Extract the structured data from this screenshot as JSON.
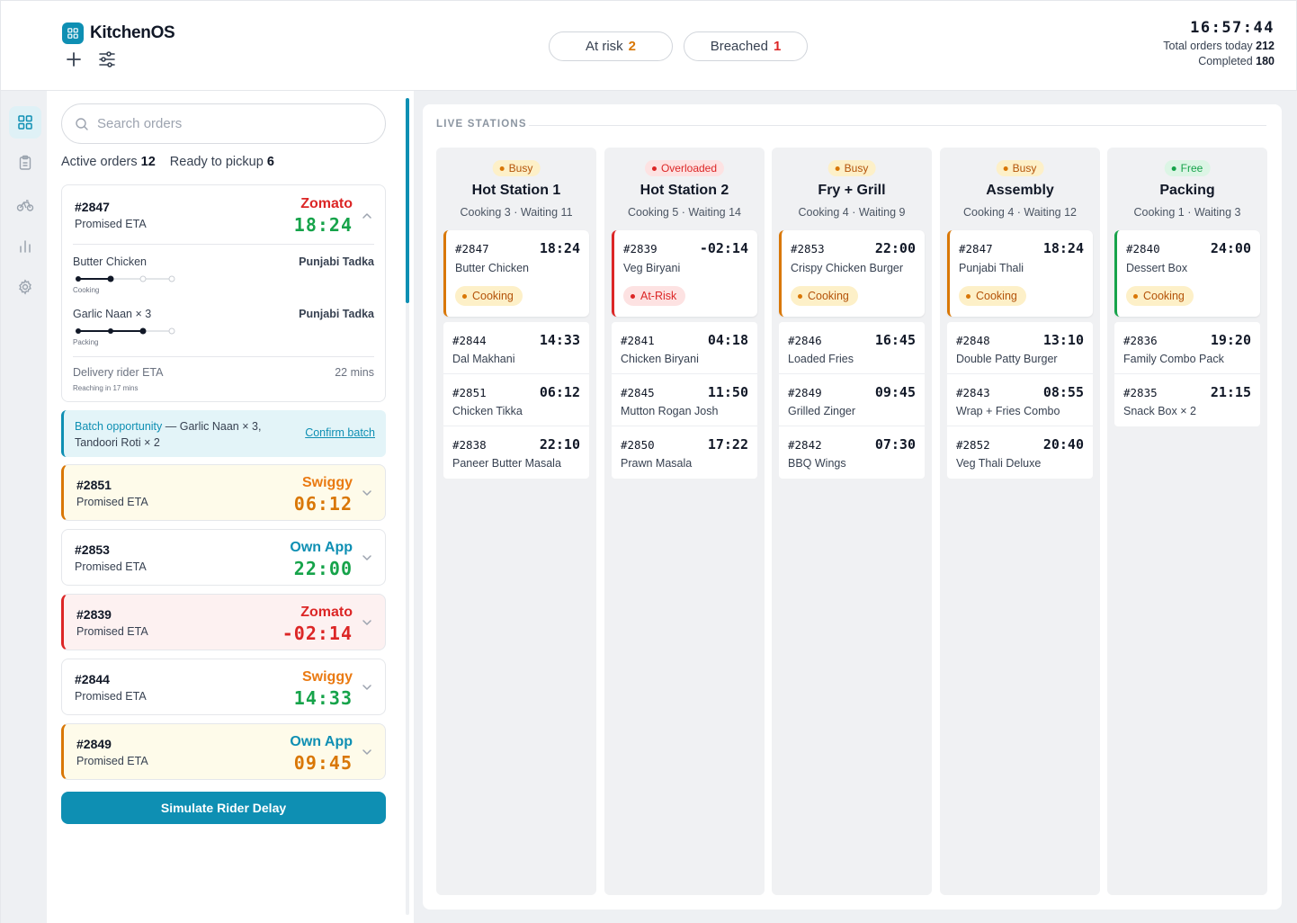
{
  "app": {
    "name": "KitchenOS"
  },
  "header": {
    "at_risk_label": "At risk",
    "at_risk_count": "2",
    "breached_label": "Breached",
    "breached_count": "1",
    "clock": "16:57:44",
    "total_label": "Total orders today",
    "total_value": "212",
    "completed_label": "Completed",
    "completed_value": "180",
    "icons": [
      "plus-icon",
      "sliders-icon"
    ]
  },
  "sidebar": {
    "items": [
      {
        "name": "dashboard",
        "icon": "grid-icon",
        "active": true
      },
      {
        "name": "orders",
        "icon": "clipboard-icon"
      },
      {
        "name": "riders",
        "icon": "bike-icon"
      },
      {
        "name": "analytics",
        "icon": "bar-chart-icon"
      },
      {
        "name": "settings",
        "icon": "gear-icon"
      }
    ]
  },
  "left": {
    "search_placeholder": "Search orders",
    "active_label": "Active orders",
    "active_count": "12",
    "ready_label": "Ready to pickup",
    "ready_count": "6",
    "expanded": {
      "id": "#2847",
      "promised": "Promised ETA",
      "vendor": "Zomato",
      "eta": "18:24",
      "items": [
        {
          "name": "Butter Chicken",
          "station": "Punjabi Tadka",
          "stage": "Cooking",
          "progress": 0.33
        },
        {
          "name": "Garlic Naan × 3",
          "station": "Punjabi Tadka",
          "stage": "Packing",
          "progress": 0.67
        }
      ],
      "rider_label": "Delivery rider ETA",
      "rider_value": "22 mins",
      "rider_sub": "Reaching in 17 mins"
    },
    "batch": {
      "title": "Batch opportunity",
      "text": " — Garlic Naan × 3, Tandoori Roti × 2",
      "action": "Confirm batch"
    },
    "orders": [
      {
        "id": "#2851",
        "promised": "Promised ETA",
        "vendor": "Swiggy",
        "eta": "06:12"
      },
      {
        "id": "#2853",
        "promised": "Promised ETA",
        "vendor": "Own App",
        "eta": "22:00"
      },
      {
        "id": "#2839",
        "promised": "Promised ETA",
        "vendor": "Zomato",
        "eta": "-02:14"
      },
      {
        "id": "#2844",
        "promised": "Promised ETA",
        "vendor": "Swiggy",
        "eta": "14:33"
      },
      {
        "id": "#2849",
        "promised": "Promised ETA",
        "vendor": "Own App",
        "eta": "09:45"
      }
    ],
    "simulate_button": "Simulate Rider Delay"
  },
  "main": {
    "section_label": "LIVE STATIONS",
    "stations": [
      {
        "status": "Busy",
        "name": "Hot Station 1",
        "summary": "Cooking 3 · Waiting 11",
        "head": {
          "id": "#2847",
          "time": "18:24",
          "item": "Butter Chicken",
          "tag": "Cooking"
        },
        "queue": [
          {
            "id": "#2844",
            "time": "14:33",
            "item": "Dal Makhani"
          },
          {
            "id": "#2851",
            "time": "06:12",
            "item": "Chicken Tikka"
          },
          {
            "id": "#2838",
            "time": "22:10",
            "item": "Paneer Butter Masala"
          }
        ]
      },
      {
        "status": "Overloaded",
        "name": "Hot Station 2",
        "summary": "Cooking 5 · Waiting 14",
        "head": {
          "id": "#2839",
          "time": "-02:14",
          "item": "Veg Biryani",
          "tag": "At-Risk"
        },
        "queue": [
          {
            "id": "#2841",
            "time": "04:18",
            "item": "Chicken Biryani"
          },
          {
            "id": "#2845",
            "time": "11:50",
            "item": "Mutton Rogan Josh"
          },
          {
            "id": "#2850",
            "time": "17:22",
            "item": "Prawn Masala"
          }
        ]
      },
      {
        "status": "Busy",
        "name": "Fry + Grill",
        "summary": "Cooking 4 · Waiting 9",
        "head": {
          "id": "#2853",
          "time": "22:00",
          "item": "Crispy Chicken Burger",
          "tag": "Cooking"
        },
        "queue": [
          {
            "id": "#2846",
            "time": "16:45",
            "item": "Loaded Fries"
          },
          {
            "id": "#2849",
            "time": "09:45",
            "item": "Grilled Zinger"
          },
          {
            "id": "#2842",
            "time": "07:30",
            "item": "BBQ Wings"
          }
        ]
      },
      {
        "status": "Busy",
        "name": "Assembly",
        "summary": "Cooking 4 · Waiting 12",
        "head": {
          "id": "#2847",
          "time": "18:24",
          "item": "Punjabi Thali",
          "tag": "Cooking"
        },
        "queue": [
          {
            "id": "#2848",
            "time": "13:10",
            "item": "Double Patty Burger"
          },
          {
            "id": "#2843",
            "time": "08:55",
            "item": "Wrap + Fries Combo"
          },
          {
            "id": "#2852",
            "time": "20:40",
            "item": "Veg Thali Deluxe"
          }
        ]
      },
      {
        "status": "Free",
        "name": "Packing",
        "summary": "Cooking 1 · Waiting 3",
        "head": {
          "id": "#2840",
          "time": "24:00",
          "item": "Dessert Box",
          "tag": "Cooking"
        },
        "queue": [
          {
            "id": "#2836",
            "time": "19:20",
            "item": "Family Combo Pack"
          },
          {
            "id": "#2835",
            "time": "21:15",
            "item": "Snack Box × 2"
          }
        ]
      }
    ]
  },
  "colors": {
    "accent": "#0e8fb3",
    "red": "#dc2626",
    "amber": "#d97706",
    "green": "#16a34a",
    "swiggy": "#ea7a12"
  }
}
